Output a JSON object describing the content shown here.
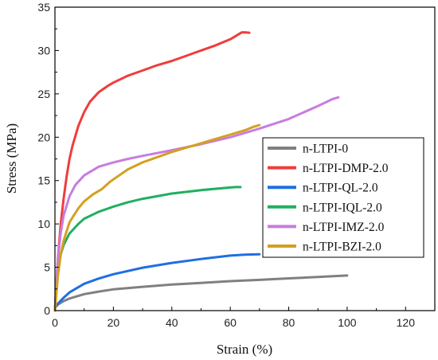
{
  "chart_data": {
    "type": "line",
    "xlabel": "Strain (%)",
    "ylabel": "Stress (MPa)",
    "xlim": [
      0,
      130
    ],
    "ylim": [
      0,
      35
    ],
    "x_ticks": [
      0,
      20,
      40,
      60,
      80,
      100,
      120
    ],
    "y_ticks": [
      0,
      5,
      10,
      15,
      20,
      25,
      30,
      35
    ],
    "legend_position": "right",
    "grid": false,
    "series": [
      {
        "name": "n-LTPI-0",
        "color": "#808080",
        "points": [
          [
            0,
            0.3
          ],
          [
            1,
            0.7
          ],
          [
            3,
            1.1
          ],
          [
            5,
            1.4
          ],
          [
            10,
            1.9
          ],
          [
            15,
            2.2
          ],
          [
            20,
            2.45
          ],
          [
            30,
            2.75
          ],
          [
            40,
            3.0
          ],
          [
            50,
            3.2
          ],
          [
            60,
            3.4
          ],
          [
            70,
            3.55
          ],
          [
            80,
            3.72
          ],
          [
            90,
            3.88
          ],
          [
            100,
            4.05
          ]
        ]
      },
      {
        "name": "n-LTPI-DMP-2.0",
        "color": "#f03c3c",
        "points": [
          [
            0,
            0
          ],
          [
            0.5,
            3
          ],
          [
            1,
            6
          ],
          [
            2,
            10
          ],
          [
            3,
            13
          ],
          [
            4,
            15.5
          ],
          [
            5,
            17.5
          ],
          [
            6,
            19
          ],
          [
            8,
            21.3
          ],
          [
            10,
            22.9
          ],
          [
            12,
            24.1
          ],
          [
            15,
            25.2
          ],
          [
            18,
            25.9
          ],
          [
            20,
            26.3
          ],
          [
            25,
            27.1
          ],
          [
            30,
            27.7
          ],
          [
            35,
            28.3
          ],
          [
            40,
            28.8
          ],
          [
            45,
            29.4
          ],
          [
            50,
            30.0
          ],
          [
            55,
            30.6
          ],
          [
            60,
            31.3
          ],
          [
            63,
            31.9
          ],
          [
            64,
            32.1
          ],
          [
            65,
            32.1
          ],
          [
            66.5,
            32.05
          ]
        ]
      },
      {
        "name": "n-LTPI-QL-2.0",
        "color": "#1f6fe0",
        "points": [
          [
            0,
            0.3
          ],
          [
            1,
            0.8
          ],
          [
            3,
            1.5
          ],
          [
            5,
            2.1
          ],
          [
            10,
            3.1
          ],
          [
            15,
            3.7
          ],
          [
            20,
            4.2
          ],
          [
            30,
            4.95
          ],
          [
            40,
            5.5
          ],
          [
            50,
            5.95
          ],
          [
            60,
            6.35
          ],
          [
            65,
            6.45
          ],
          [
            70,
            6.5
          ]
        ]
      },
      {
        "name": "n-LTPI-IQL-2.0",
        "color": "#1fb060",
        "points": [
          [
            0,
            0
          ],
          [
            0.5,
            2.5
          ],
          [
            1,
            4.5
          ],
          [
            2,
            6.5
          ],
          [
            3,
            7.6
          ],
          [
            5,
            8.9
          ],
          [
            8,
            10.0
          ],
          [
            10,
            10.6
          ],
          [
            15,
            11.4
          ],
          [
            20,
            12.0
          ],
          [
            25,
            12.5
          ],
          [
            30,
            12.9
          ],
          [
            40,
            13.5
          ],
          [
            50,
            13.9
          ],
          [
            60,
            14.2
          ],
          [
            62,
            14.25
          ],
          [
            63.5,
            14.25
          ]
        ]
      },
      {
        "name": "n-LTPI-IMZ-2.0",
        "color": "#c77ddf",
        "points": [
          [
            0,
            0
          ],
          [
            0.5,
            3
          ],
          [
            1,
            6
          ],
          [
            2,
            9
          ],
          [
            3,
            11
          ],
          [
            5,
            13.2
          ],
          [
            7,
            14.5
          ],
          [
            10,
            15.6
          ],
          [
            15,
            16.6
          ],
          [
            20,
            17.1
          ],
          [
            25,
            17.5
          ],
          [
            30,
            17.85
          ],
          [
            40,
            18.5
          ],
          [
            50,
            19.2
          ],
          [
            60,
            20.0
          ],
          [
            70,
            21.0
          ],
          [
            80,
            22.1
          ],
          [
            90,
            23.6
          ],
          [
            95,
            24.4
          ],
          [
            97,
            24.6
          ]
        ]
      },
      {
        "name": "n-LTPI-BZI-2.0",
        "color": "#d4a020",
        "points": [
          [
            0,
            0
          ],
          [
            1,
            4
          ],
          [
            2,
            6.5
          ],
          [
            3,
            8.1
          ],
          [
            5,
            10.2
          ],
          [
            8,
            11.8
          ],
          [
            10,
            12.6
          ],
          [
            13,
            13.4
          ],
          [
            16,
            14.0
          ],
          [
            17,
            14.3
          ],
          [
            19,
            14.9
          ],
          [
            22,
            15.6
          ],
          [
            25,
            16.3
          ],
          [
            30,
            17.1
          ],
          [
            35,
            17.7
          ],
          [
            40,
            18.3
          ],
          [
            45,
            18.8
          ],
          [
            50,
            19.3
          ],
          [
            55,
            19.8
          ],
          [
            60,
            20.3
          ],
          [
            65,
            20.8
          ],
          [
            68,
            21.2
          ],
          [
            70,
            21.4
          ]
        ]
      }
    ]
  }
}
